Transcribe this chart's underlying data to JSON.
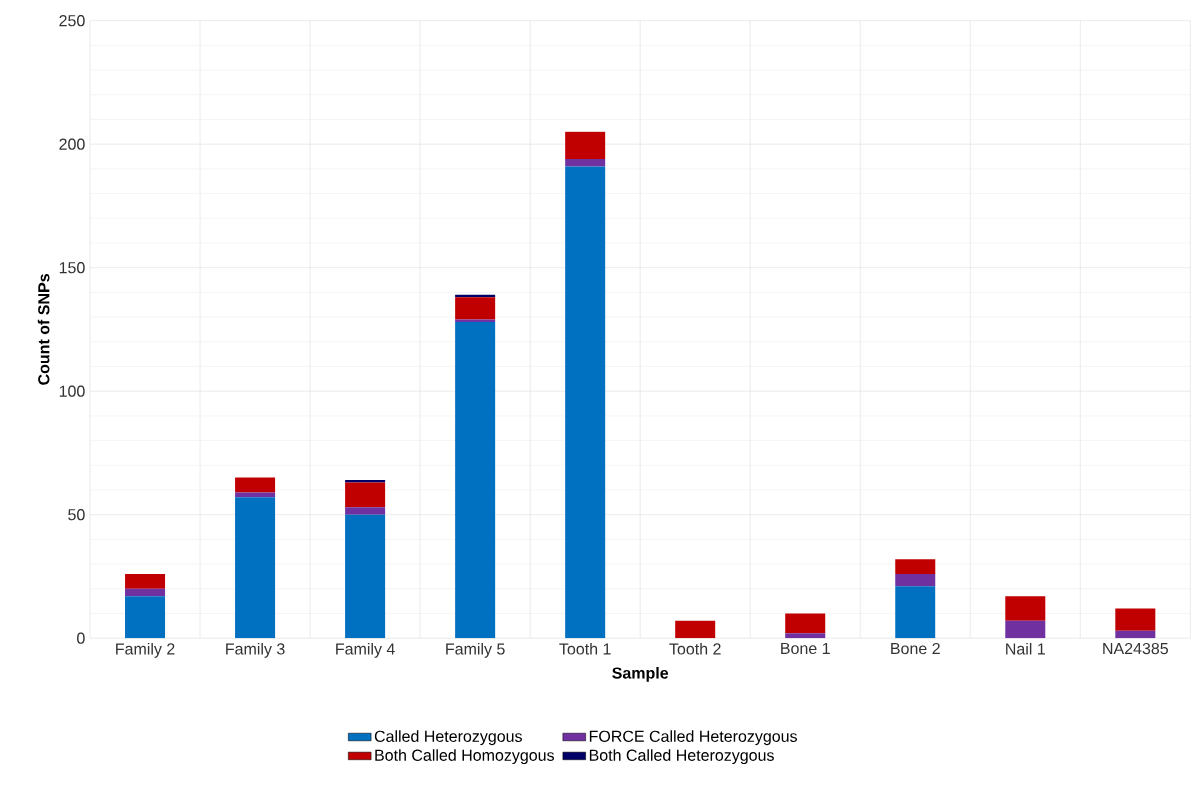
{
  "chart_data": {
    "type": "bar",
    "stacked": true,
    "xlabel": "Sample",
    "ylabel": "Count of SNPs",
    "categories": [
      "Family 2",
      "Family 3",
      "Family 4",
      "Family 5",
      "Tooth 1",
      "Tooth 2",
      "Bone 1",
      "Bone 2",
      "Nail 1",
      "NA24385"
    ],
    "series": [
      {
        "name": "Called Heterozygous",
        "color": "#0070c0",
        "values": [
          17,
          57,
          50,
          128,
          191,
          0,
          0,
          21,
          0,
          0
        ]
      },
      {
        "name": "FORCE Called Heterozygous",
        "color": "#7030a0",
        "values": [
          3,
          2,
          3,
          1,
          3,
          0,
          2,
          5,
          7,
          3
        ]
      },
      {
        "name": "Both Called Homozygous",
        "color": "#c00000",
        "values": [
          6,
          6,
          10,
          9,
          11,
          7,
          8,
          6,
          10,
          9
        ]
      },
      {
        "name": "Both Called Heterozygous",
        "color": "#000066",
        "values": [
          0,
          0,
          1,
          1,
          0,
          0,
          0,
          0,
          0,
          0
        ]
      }
    ],
    "ylim": [
      0,
      250
    ],
    "yticks": [
      0,
      50,
      100,
      150,
      200,
      250
    ],
    "grid": true,
    "legend": "bottom"
  }
}
